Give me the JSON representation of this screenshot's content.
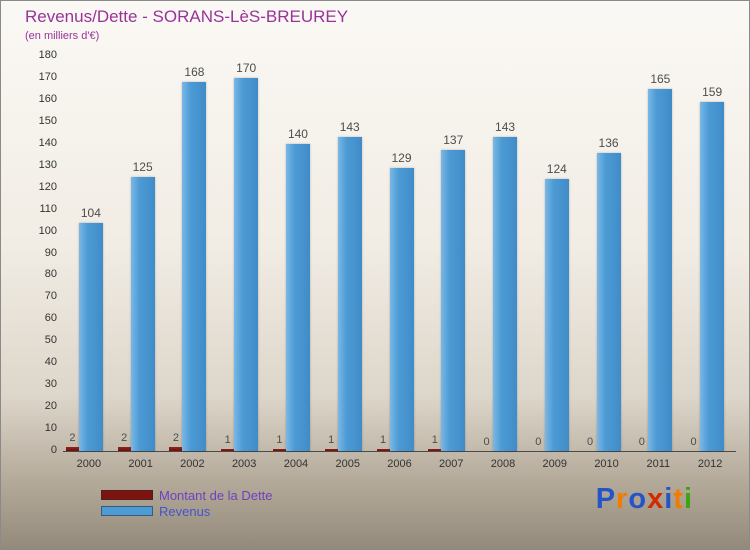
{
  "title": "Revenus/Dette - SORANS-LèS-BREUREY",
  "subtitle": "(en milliers d'€)",
  "colors": {
    "title_text": "#993399",
    "revenus_bar": "#4d9bd5",
    "dette_bar": "#7e1410",
    "axis": "#4a4a4a"
  },
  "chart_data": {
    "type": "bar",
    "title": "Revenus/Dette - SORANS-LèS-BREUREY",
    "subtitle": "(en milliers d'€)",
    "categories": [
      "2000",
      "2001",
      "2002",
      "2003",
      "2004",
      "2005",
      "2006",
      "2007",
      "2008",
      "2009",
      "2010",
      "2011",
      "2012"
    ],
    "series": [
      {
        "name": "Montant de la Dette",
        "color": "#7e1410",
        "values": [
          2,
          2,
          2,
          1,
          1,
          1,
          1,
          1,
          0,
          0,
          0,
          0,
          0
        ]
      },
      {
        "name": "Revenus",
        "color": "#4d9bd5",
        "values": [
          104,
          125,
          168,
          170,
          140,
          143,
          129,
          137,
          143,
          124,
          136,
          165,
          159
        ]
      }
    ],
    "ylim": [
      0,
      180
    ],
    "ytick_step": 10,
    "grid": false,
    "legend_position": "bottom-left"
  },
  "legend": {
    "items": [
      {
        "label": "Montant de la Dette",
        "swatch_color": "#7e1410",
        "text_color": "#7040c0"
      },
      {
        "label": "Revenus",
        "swatch_color": "#4d9bd5",
        "text_color": "#4455cc"
      }
    ]
  },
  "logo": {
    "text": "Proxiti",
    "letters": [
      {
        "ch": "P",
        "color": "#2553c8"
      },
      {
        "ch": "r",
        "color": "#f07d00"
      },
      {
        "ch": "o",
        "color": "#2553c8"
      },
      {
        "ch": "x",
        "color": "#d42a00"
      },
      {
        "ch": "i",
        "color": "#2553c8"
      },
      {
        "ch": "t",
        "color": "#f07d00"
      },
      {
        "ch": "i",
        "color": "#3fa510"
      }
    ]
  }
}
